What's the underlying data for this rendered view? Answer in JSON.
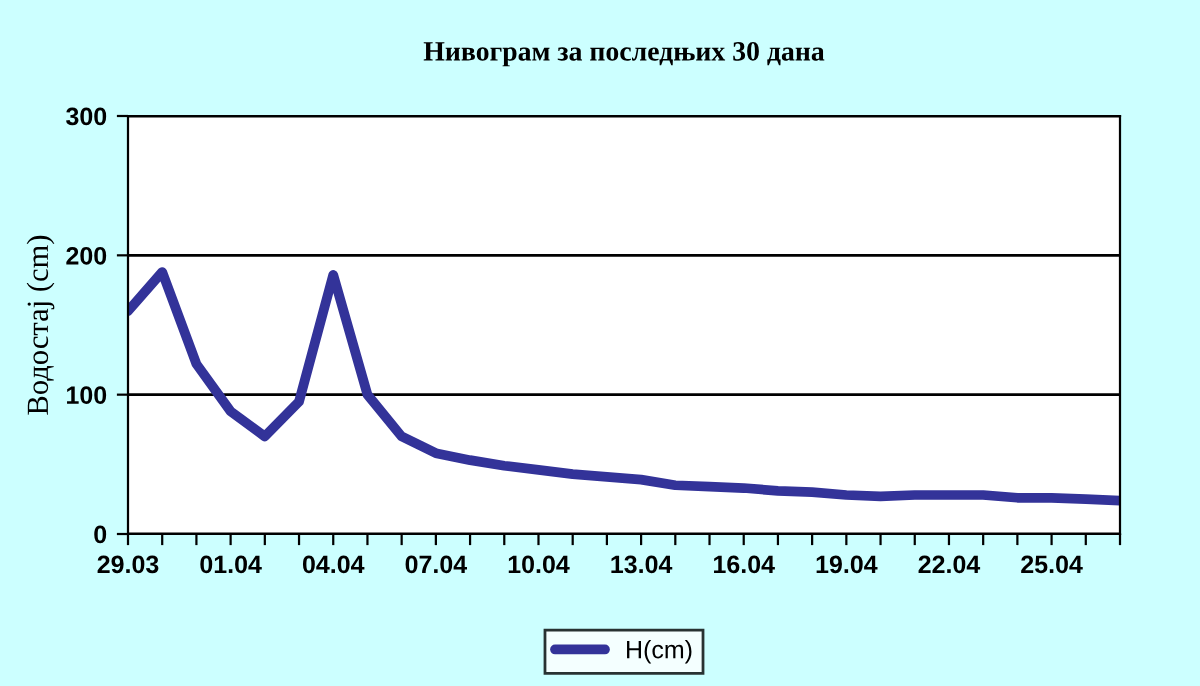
{
  "chart_data": {
    "type": "line",
    "title": "Нивограм за последњих 30 дана",
    "ylabel": "Водостај (cm)",
    "categories": [
      "29.03",
      null,
      null,
      "01.04",
      null,
      null,
      "04.04",
      null,
      null,
      "07.04",
      null,
      null,
      "10.04",
      null,
      null,
      "13.04",
      null,
      null,
      "16.04",
      null,
      null,
      "19.04",
      null,
      null,
      "22.04",
      null,
      null,
      "25.04",
      null,
      null
    ],
    "series": [
      {
        "name": "H(cm)",
        "color": "#333399",
        "values": [
          160,
          188,
          122,
          88,
          70,
          95,
          186,
          100,
          70,
          58,
          53,
          49,
          46,
          43,
          41,
          39,
          35,
          34,
          33,
          31,
          30,
          28,
          27,
          28,
          28,
          28,
          26,
          26,
          25,
          24
        ]
      }
    ],
    "ylim": [
      0,
      300
    ],
    "yticks": [
      0,
      100,
      200,
      300
    ],
    "grid": "y",
    "legend": "bottom",
    "marker": "none",
    "line_style": "solid"
  }
}
